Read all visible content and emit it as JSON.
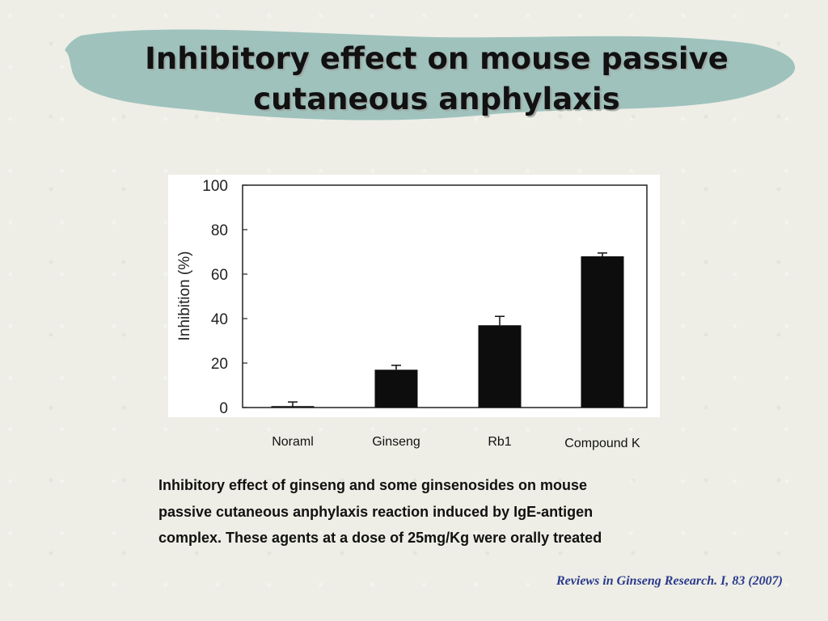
{
  "slide": {
    "title_line1": "Inhibitory effect on mouse passive",
    "title_line2": "cutaneous anphylaxis",
    "caption_lines": [
      "Inhibitory effect of ginseng and some ginsenosides on mouse",
      "passive cutaneous anphylaxis reaction induced by IgE-antigen",
      "complex. These agents at a dose of 25mg/Kg were orally treated"
    ],
    "reference": "Reviews in Ginseng Research. I, 83 (2007)"
  },
  "colors": {
    "brush": "#9fc2bd",
    "bar": "#0d0d0d",
    "reference_text": "#2a3a8c"
  },
  "chart_data": {
    "type": "bar",
    "categories": [
      "Noraml",
      "Ginseng",
      "Rb1",
      "Compound K"
    ],
    "values": [
      0,
      17,
      37,
      68
    ],
    "errors": [
      2.5,
      2,
      4,
      1.5
    ],
    "ylabel": "Inhibition (%)",
    "ylim": [
      0,
      100
    ],
    "yticks": [
      0,
      20,
      40,
      60,
      80,
      100
    ],
    "grid": false
  }
}
